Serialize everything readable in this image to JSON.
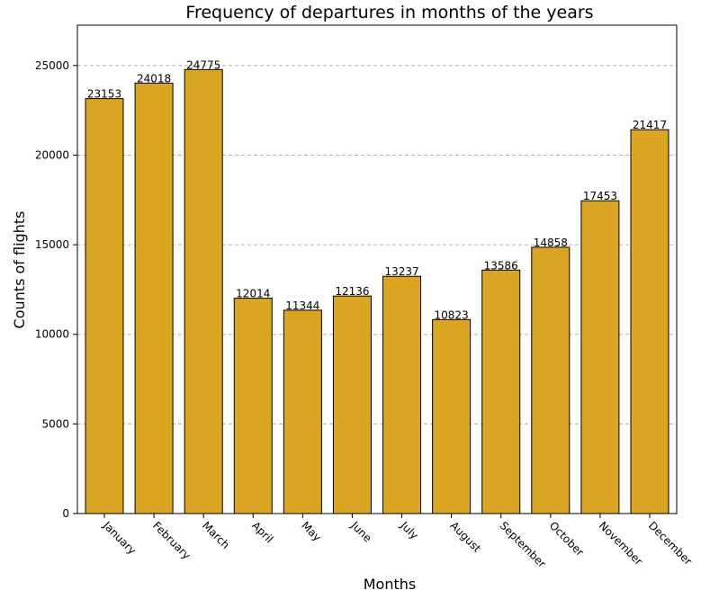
{
  "chart_data": {
    "type": "bar",
    "title": "Frequency of departures in months of the years",
    "xlabel": "Months",
    "ylabel": "Counts of flights",
    "categories": [
      "January",
      "February",
      "March",
      "April",
      "May",
      "June",
      "July",
      "August",
      "September",
      "October",
      "November",
      "December"
    ],
    "values": [
      23153,
      24018,
      24775,
      12014,
      11344,
      12136,
      13237,
      10823,
      13586,
      14858,
      17453,
      21417
    ],
    "data_labels": [
      "23153",
      "24018",
      "24775",
      "12014",
      "11344",
      "12136",
      "13237",
      "10823",
      "13586",
      "14858",
      "17453",
      "21417"
    ],
    "yticks": [
      0,
      5000,
      10000,
      15000,
      20000,
      25000
    ],
    "ytick_labels": [
      "0",
      "5000",
      "10000",
      "15000",
      "20000",
      "25000"
    ],
    "ylim": [
      0,
      27250
    ],
    "grid": "y-dashed",
    "legend": "none",
    "colors": {
      "bar_fill": "#DAA520",
      "bar_edge": "#000000",
      "grid": "#b0b0b0",
      "axes": "#000000"
    }
  }
}
